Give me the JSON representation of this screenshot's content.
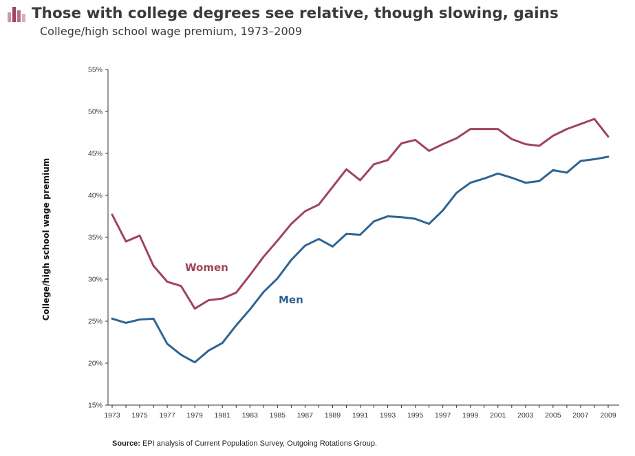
{
  "header": {
    "title": "Those with college degrees see relative, though slowing, gains",
    "subtitle": "College/high school wage premium, 1973–2009",
    "icon": "bar-chart-icon"
  },
  "source": {
    "label": "Source:",
    "text": " EPI analysis of Current Population Survey, Outgoing Rotations Group."
  },
  "colors": {
    "women": "#a0445a",
    "men": "#2d6494",
    "axis": "#333333",
    "icon": "#a0445a"
  },
  "chart_data": {
    "type": "line",
    "ylabel": "College/high school wage premium",
    "ylim": [
      15,
      55
    ],
    "yticks": [
      15,
      20,
      25,
      30,
      35,
      40,
      45,
      50,
      55
    ],
    "ytick_labels": [
      "15%",
      "20%",
      "25%",
      "30%",
      "35%",
      "40%",
      "45%",
      "50%",
      "55%"
    ],
    "xlim": [
      1973,
      2009
    ],
    "xticks": [
      1973,
      1975,
      1977,
      1979,
      1981,
      1983,
      1985,
      1987,
      1989,
      1991,
      1993,
      1995,
      1997,
      1999,
      2001,
      2003,
      2005,
      2007,
      2009
    ],
    "xtick_labels": [
      "1973",
      "1975",
      "1977",
      "1979",
      "1981",
      "1983",
      "1985",
      "1987",
      "1989",
      "1991",
      "1993",
      "1995",
      "1997",
      "1999",
      "2001",
      "2003",
      "2005",
      "2007",
      "2009"
    ],
    "grid": false,
    "x": [
      1973,
      1974,
      1975,
      1976,
      1977,
      1978,
      1979,
      1980,
      1981,
      1982,
      1983,
      1984,
      1985,
      1986,
      1987,
      1988,
      1989,
      1990,
      1991,
      1992,
      1993,
      1994,
      1995,
      1996,
      1997,
      1998,
      1999,
      2000,
      2001,
      2002,
      2003,
      2004,
      2005,
      2006,
      2007,
      2008,
      2009
    ],
    "series": [
      {
        "name": "Women",
        "values": [
          37.7,
          34.5,
          35.2,
          31.6,
          29.7,
          29.2,
          26.5,
          27.5,
          27.7,
          28.4,
          30.5,
          32.7,
          34.6,
          36.6,
          38.1,
          38.9,
          41.0,
          43.1,
          41.8,
          43.7,
          44.2,
          46.2,
          46.6,
          45.3,
          46.1,
          46.8,
          47.9,
          47.9,
          47.9,
          46.7,
          46.1,
          45.9,
          47.1,
          47.9,
          48.5,
          49.1,
          47.0
        ]
      },
      {
        "name": "Men",
        "values": [
          25.3,
          24.8,
          25.2,
          25.3,
          22.3,
          21.0,
          20.1,
          21.5,
          22.4,
          24.5,
          26.4,
          28.5,
          30.1,
          32.3,
          34.0,
          34.8,
          33.9,
          35.4,
          35.3,
          36.9,
          37.5,
          37.4,
          37.2,
          36.6,
          38.2,
          40.3,
          41.5,
          42.0,
          42.6,
          42.1,
          41.5,
          41.7,
          43.0,
          42.7,
          44.1,
          44.3,
          44.6
        ]
      }
    ]
  }
}
